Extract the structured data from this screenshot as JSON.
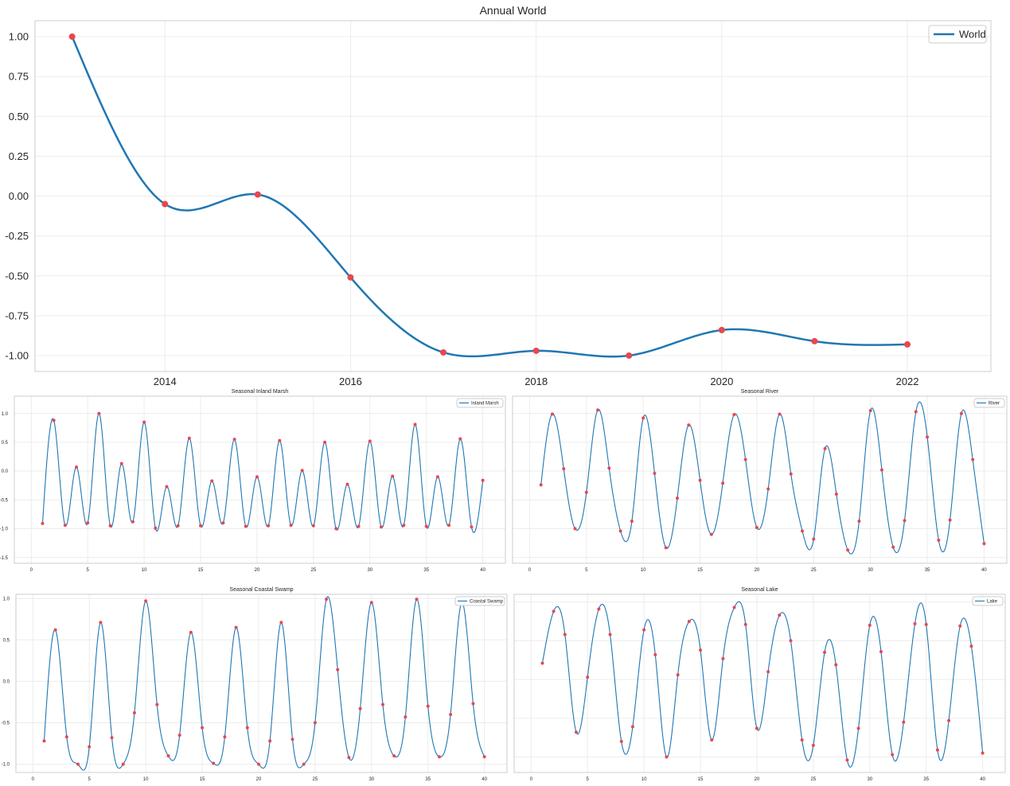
{
  "chart_data": [
    {
      "id": "main",
      "type": "line",
      "title": "Annual World",
      "xlabel": "",
      "ylabel": "",
      "x_ticks": [
        2014,
        2016,
        2018,
        2020,
        2022
      ],
      "y_ticks": [
        "1.00",
        "0.75",
        "0.50",
        "0.25",
        "0.00",
        "-0.25",
        "-0.50",
        "-0.75",
        "-1.00"
      ],
      "xlim": [
        2012.6,
        2022.9
      ],
      "ylim": [
        -1.1,
        1.1
      ],
      "grid": true,
      "legend": "top-right",
      "line_color": "#1f77b4",
      "marker_color": "#e8474f",
      "series": [
        {
          "name": "World",
          "x": [
            2013,
            2014,
            2015,
            2016,
            2017,
            2018,
            2019,
            2020,
            2021,
            2022
          ],
          "y": [
            1.0,
            -0.05,
            0.01,
            -0.51,
            -0.98,
            -0.97,
            -1.0,
            -0.84,
            -0.91,
            -0.93
          ]
        }
      ]
    },
    {
      "id": "s1",
      "type": "line",
      "title": "Seasonal Inland Marsh",
      "x_ticks": [
        "0",
        "5",
        "10",
        "15",
        "20",
        "25",
        "30",
        "35",
        "40"
      ],
      "y_ticks": [
        "1.0",
        "0.5",
        "0.0",
        "-0.5",
        "-1.0",
        "-1.5"
      ],
      "xlim": [
        -1.5,
        42
      ],
      "ylim": [
        -1.6,
        1.3
      ],
      "grid": true,
      "legend": "top-right",
      "series": [
        {
          "name": "Inland Marsh",
          "x": [
            1,
            2,
            3,
            4,
            5,
            6,
            7,
            8,
            9,
            10,
            11,
            12,
            13,
            14,
            15,
            16,
            17,
            18,
            19,
            20,
            21,
            22,
            23,
            24,
            25,
            26,
            27,
            28,
            29,
            30,
            31,
            32,
            33,
            34,
            35,
            36,
            37,
            38,
            39,
            40
          ],
          "y": [
            -0.91,
            0.88,
            -0.94,
            0.07,
            -0.9,
            1.0,
            -0.95,
            0.13,
            -0.88,
            0.85,
            -0.99,
            -0.27,
            -0.95,
            0.57,
            -0.95,
            -0.17,
            -0.9,
            0.55,
            -0.96,
            -0.1,
            -0.95,
            0.53,
            -0.94,
            0.01,
            -0.95,
            0.5,
            -1.0,
            -0.23,
            -0.96,
            0.52,
            -0.97,
            -0.09,
            -0.94,
            0.81,
            -0.96,
            -0.1,
            -0.94,
            0.56,
            -0.97,
            -0.16
          ]
        }
      ]
    },
    {
      "id": "s2",
      "type": "line",
      "title": "Seasonal River",
      "x_ticks": [
        "0",
        "5",
        "10",
        "15",
        "20",
        "25",
        "30",
        "35",
        "40"
      ],
      "y_ticks": [],
      "xlim": [
        -1.5,
        42
      ],
      "ylim": [
        -1.6,
        1.3
      ],
      "grid": true,
      "legend": "top-right",
      "series": [
        {
          "name": "River",
          "x": [
            1,
            2,
            3,
            4,
            5,
            6,
            7,
            8,
            9,
            10,
            11,
            12,
            13,
            14,
            15,
            16,
            17,
            18,
            19,
            20,
            21,
            22,
            23,
            24,
            25,
            26,
            27,
            28,
            29,
            30,
            31,
            32,
            33,
            34,
            35,
            36,
            37,
            38,
            39,
            40
          ],
          "y": [
            -0.24,
            0.99,
            0.04,
            -1.0,
            -0.37,
            1.06,
            0.05,
            -1.04,
            -0.87,
            0.92,
            -0.04,
            -1.33,
            -0.47,
            0.8,
            -0.16,
            -1.1,
            -0.21,
            0.98,
            0.2,
            -0.98,
            -0.31,
            0.99,
            -0.05,
            -1.04,
            -1.18,
            0.39,
            -0.4,
            -1.37,
            -0.87,
            1.05,
            0.02,
            -1.32,
            -0.86,
            1.03,
            0.59,
            -1.2,
            -0.85,
            1.0,
            0.2,
            -1.26
          ]
        }
      ]
    },
    {
      "id": "s3",
      "type": "line",
      "title": "Seasonal Coastal Swamp",
      "x_ticks": [
        "0",
        "5",
        "10",
        "15",
        "20",
        "25",
        "30",
        "35",
        "40"
      ],
      "y_ticks": [
        "1.0",
        "0.5",
        "0.0",
        "-0.5",
        "-1.0"
      ],
      "xlim": [
        -1.5,
        42
      ],
      "ylim": [
        -1.1,
        1.05
      ],
      "grid": true,
      "legend": "top-right",
      "series": [
        {
          "name": "Coastal Swamp",
          "x": [
            1,
            2,
            3,
            4,
            5,
            6,
            7,
            8,
            9,
            10,
            11,
            12,
            13,
            14,
            15,
            16,
            17,
            18,
            19,
            20,
            21,
            22,
            23,
            24,
            25,
            26,
            27,
            28,
            29,
            30,
            31,
            32,
            33,
            34,
            35,
            36,
            37,
            38,
            39,
            40
          ],
          "y": [
            -0.72,
            0.62,
            -0.67,
            -1.0,
            -0.79,
            0.71,
            -0.68,
            -1.0,
            -0.38,
            0.97,
            -0.28,
            -0.9,
            -0.65,
            0.59,
            -0.56,
            -0.99,
            -0.67,
            0.65,
            -0.56,
            -1.0,
            -0.72,
            0.71,
            -0.7,
            -1.0,
            -0.5,
            0.99,
            0.14,
            -0.92,
            -0.33,
            0.95,
            -0.28,
            -0.9,
            -0.43,
            0.99,
            -0.3,
            -0.91,
            -0.4,
            0.95,
            -0.27,
            -0.91
          ]
        }
      ]
    },
    {
      "id": "s4",
      "type": "line",
      "title": "Seasonal Lake",
      "x_ticks": [
        "0",
        "5",
        "10",
        "15",
        "20",
        "25",
        "30",
        "35",
        "40"
      ],
      "y_ticks": [],
      "xlim": [
        -1.5,
        42
      ],
      "ylim": [
        -1.2,
        1.1
      ],
      "grid": true,
      "legend": "top-right",
      "series": [
        {
          "name": "Lake",
          "x": [
            1,
            2,
            3,
            4,
            5,
            6,
            7,
            8,
            9,
            10,
            11,
            12,
            13,
            14,
            15,
            16,
            17,
            18,
            19,
            20,
            21,
            22,
            23,
            24,
            25,
            26,
            27,
            28,
            29,
            30,
            31,
            32,
            33,
            34,
            35,
            36,
            37,
            38,
            39,
            40
          ],
          "y": [
            0.21,
            0.88,
            0.58,
            -0.68,
            0.03,
            0.91,
            0.58,
            -0.8,
            -0.61,
            0.64,
            0.32,
            -1.0,
            0.06,
            0.75,
            0.38,
            -0.78,
            0.27,
            0.93,
            0.71,
            -0.63,
            0.1,
            0.83,
            0.5,
            -0.78,
            -0.85,
            0.35,
            0.19,
            -1.04,
            -0.63,
            0.7,
            0.36,
            -0.97,
            -0.55,
            0.72,
            0.71,
            -0.91,
            -0.53,
            0.69,
            0.43,
            -0.95
          ]
        }
      ]
    }
  ]
}
